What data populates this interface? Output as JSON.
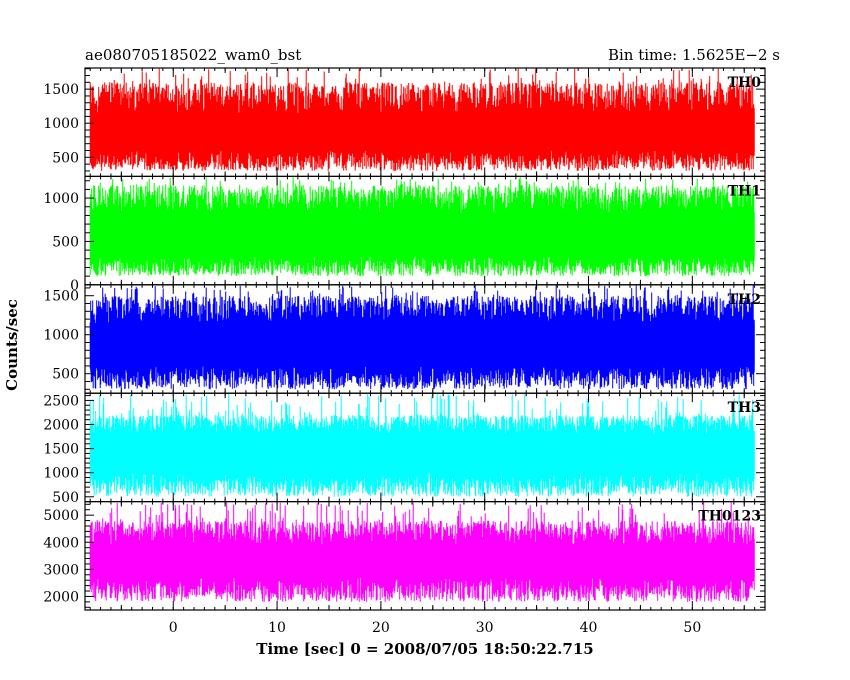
{
  "header": {
    "left_title": "ae080705185022_wam0_bst",
    "right_title": "Bin time: 1.5625E−2 s"
  },
  "chart_data": {
    "type": "line",
    "title": "ae080705185022_wam0_bst",
    "subtitle": "Bin time: 1.5625E−2 s",
    "xlabel": "Time [sec] 0 = 2008/07/05 18:50:22.715",
    "ylabel": "Counts/sec",
    "xlim": [
      -8.5,
      57
    ],
    "x_data_range": [
      -8,
      56
    ],
    "x_ticks": [
      0,
      10,
      20,
      30,
      40,
      50
    ],
    "grid": false,
    "panels": [
      {
        "name": "TH0",
        "color": "#ff0000",
        "ylim": [
          220,
          1810
        ],
        "y_ticks": [
          500,
          1000,
          1500
        ],
        "y_range": [
          300,
          1600
        ],
        "y_base": 300,
        "y_mean": 860,
        "y_core": [
          600,
          1150
        ],
        "y_max": 1800
      },
      {
        "name": "TH1",
        "color": "#00ff00",
        "ylim": [
          0,
          1250
        ],
        "y_ticks": [
          0,
          500,
          1000
        ],
        "y_range": [
          80,
          1150
        ],
        "y_base": 100,
        "y_mean": 560,
        "y_core": [
          330,
          820
        ],
        "y_max": 1250
      },
      {
        "name": "TH2",
        "color": "#0000ff",
        "ylim": [
          250,
          1640
        ],
        "y_ticks": [
          500,
          1000,
          1500
        ],
        "y_range": [
          300,
          1500
        ],
        "y_base": 300,
        "y_mean": 860,
        "y_core": [
          600,
          1150
        ],
        "y_max": 1640
      },
      {
        "name": "TH3",
        "color": "#00ffff",
        "ylim": [
          400,
          2650
        ],
        "y_ticks": [
          500,
          1000,
          1500,
          2000,
          2500
        ],
        "y_range": [
          500,
          2200
        ],
        "y_base": 500,
        "y_mean": 1400,
        "y_core": [
          1000,
          1800
        ],
        "y_max": 2650
      },
      {
        "name": "TH0123",
        "color": "#ff00ff",
        "ylim": [
          1500,
          5500
        ],
        "y_ticks": [
          2000,
          3000,
          4000,
          5000
        ],
        "y_range": [
          1800,
          4800
        ],
        "y_base": 1800,
        "y_mean": 3300,
        "y_core": [
          2700,
          3900
        ],
        "y_max": 5500
      }
    ]
  }
}
